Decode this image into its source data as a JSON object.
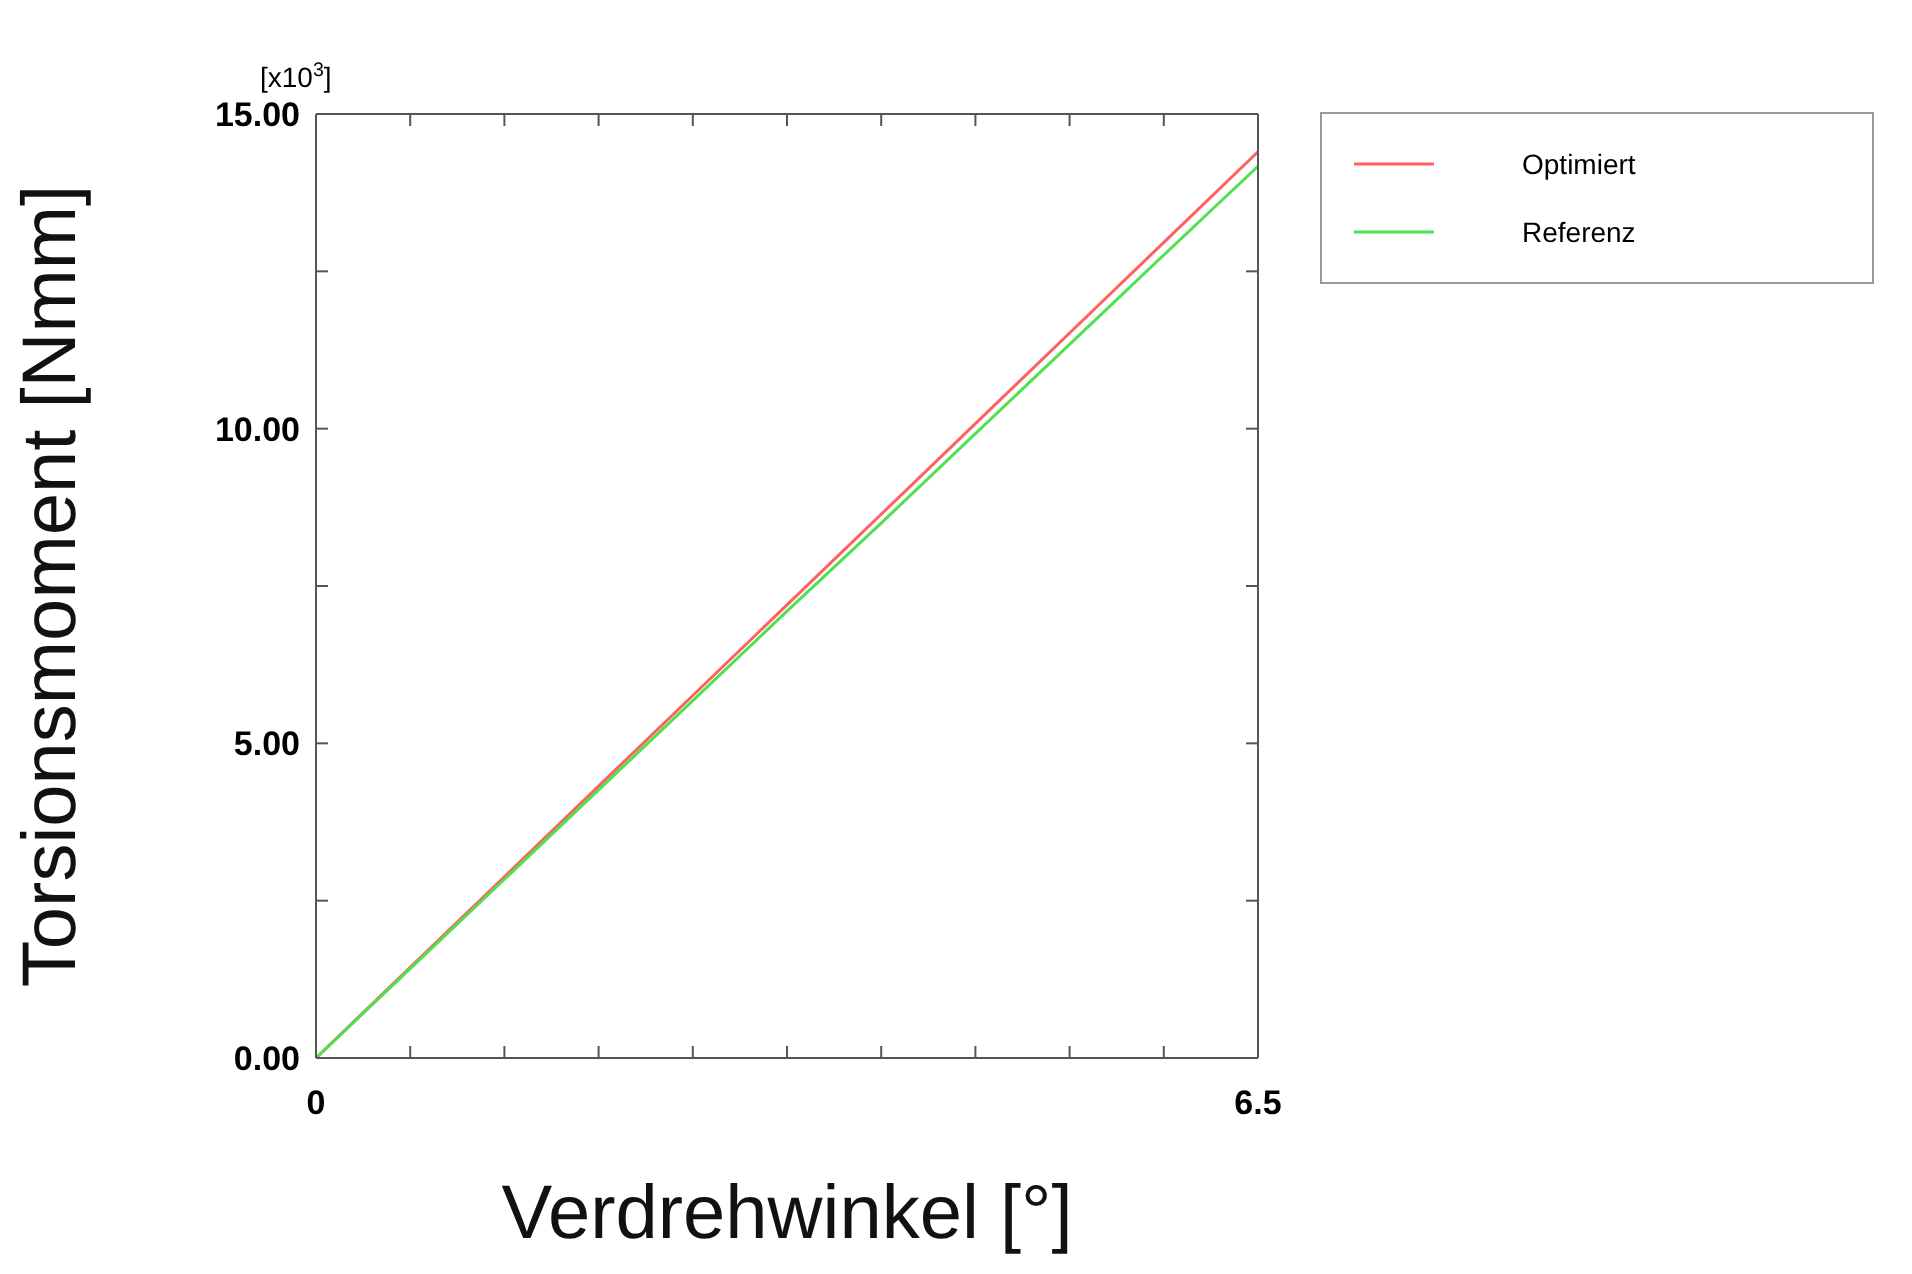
{
  "chart_data": {
    "type": "line",
    "xlabel": "Verdrehwinkel [°]",
    "ylabel": "Torsionsmoment [Nmm]",
    "annotations": [
      "[x10$^{3}$]"
    ],
    "x": [
      0,
      0.65,
      1.3,
      1.95,
      2.6,
      3.25,
      3.9,
      4.55,
      5.2,
      5.85,
      6.5
    ],
    "series": [
      {
        "name": "Optimiert",
        "color": "#ff6060",
        "values": [
          0,
          1.44,
          2.88,
          4.32,
          5.76,
          7.2,
          8.64,
          10.08,
          11.52,
          12.96,
          14.4
        ]
      },
      {
        "name": "Referenz",
        "color": "#50e050",
        "values": [
          0,
          1.42,
          2.84,
          4.26,
          5.68,
          7.1,
          8.5,
          9.92,
          11.34,
          12.76,
          14.17
        ]
      }
    ],
    "xlim": [
      0,
      6.5
    ],
    "xticks": [
      0,
      {
        "value": 0.65,
        "label": null
      },
      {
        "value": 1.3,
        "label": null
      },
      {
        "value": 1.95,
        "label": null
      },
      {
        "value": 2.6,
        "label": null
      },
      {
        "value": 3.25,
        "label": null
      },
      {
        "value": 3.9,
        "label": null
      },
      {
        "value": 4.55,
        "label": null
      },
      {
        "value": 5.2,
        "label": null
      },
      {
        "value": 5.85,
        "label": null
      },
      6.5
    ],
    "ylim": [
      0,
      15
    ],
    "yticks": [
      {
        "value": 0,
        "label": "0.00"
      },
      {
        "value": 2.5,
        "label": null
      },
      {
        "value": 5,
        "label": "5.00"
      },
      {
        "value": 7.5,
        "label": null
      },
      {
        "value": 10,
        "label": "10.00"
      },
      {
        "value": 12.5,
        "label": null
      },
      {
        "value": 15,
        "label": "15.00"
      }
    ],
    "grid": false,
    "legend": "top right",
    "marker": "none",
    "line_style": "solid"
  }
}
